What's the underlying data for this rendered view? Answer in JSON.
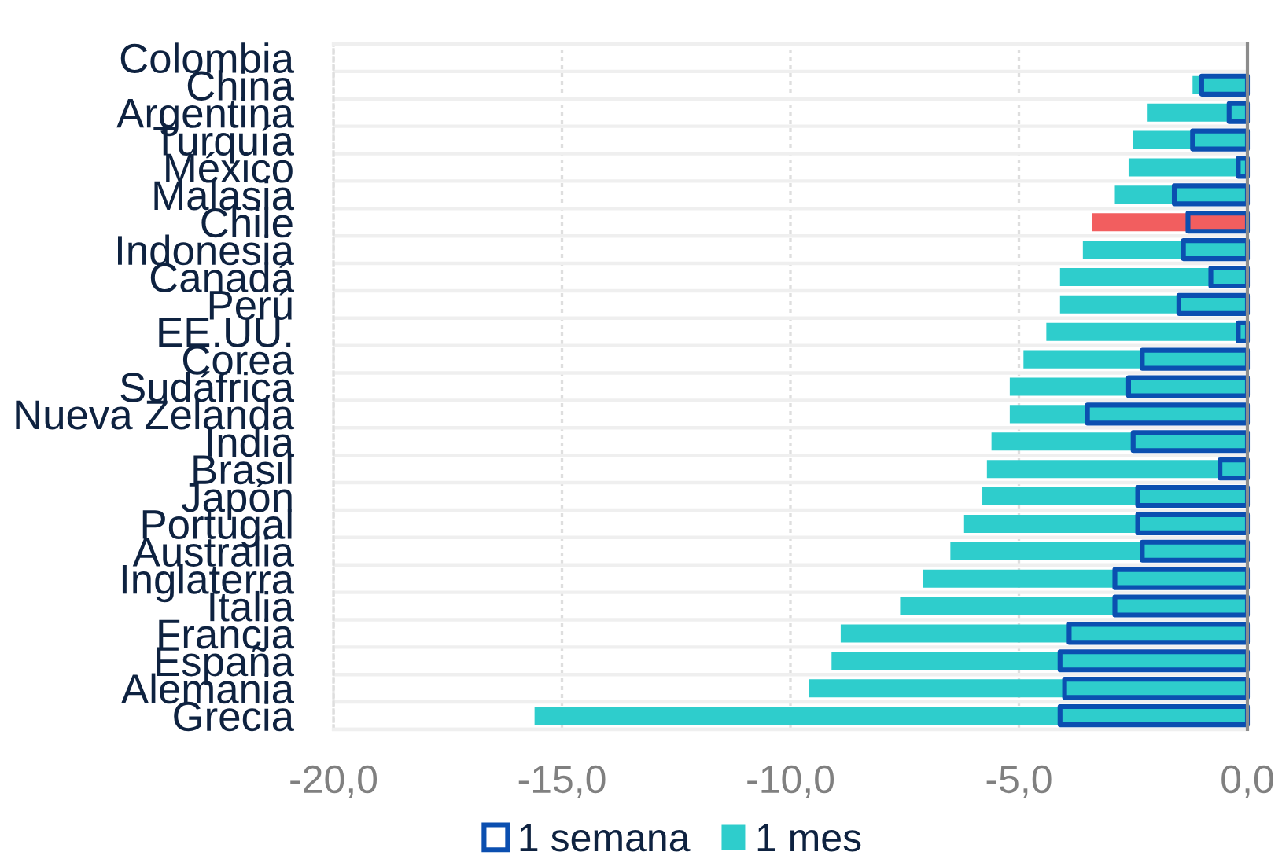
{
  "chart_data": {
    "type": "bar",
    "orientation": "horizontal",
    "categories": [
      "Colombia",
      "China",
      "Argentina",
      "Turquía",
      "México",
      "Malasia",
      "Chile",
      "Indonesia",
      "Canadá",
      "Perú",
      "EE.UU.",
      "Corea",
      "Sudáfrica",
      "Nueva Zelanda",
      "India",
      "Brasil",
      "Japón",
      "Portugal",
      "Australia",
      "Inglaterra",
      "Italia",
      "Francia",
      "España",
      "Alemania",
      "Grecia"
    ],
    "series": [
      {
        "name": "1 semana",
        "color": "#0b4fb0",
        "line_style": "solid",
        "values": [
          null,
          -1.0,
          -0.4,
          -1.2,
          -0.2,
          -1.6,
          -1.3,
          -1.4,
          -0.8,
          -1.5,
          -0.2,
          -2.3,
          -2.6,
          -3.5,
          -2.5,
          -0.6,
          -2.4,
          -2.4,
          -2.3,
          -2.9,
          -2.9,
          -3.9,
          -4.1,
          -4.0,
          -4.1
        ]
      },
      {
        "name": "1 mes",
        "color": "#2ecdcc",
        "colors": [
          "#2ecdcc",
          "#2ecdcc",
          "#2ecdcc",
          "#2ecdcc",
          "#2ecdcc",
          "#2ecdcc",
          "#f25e5f",
          "#2ecdcc",
          "#2ecdcc",
          "#2ecdcc",
          "#2ecdcc",
          "#2ecdcc",
          "#2ecdcc",
          "#2ecdcc",
          "#2ecdcc",
          "#2ecdcc",
          "#2ecdcc",
          "#2ecdcc",
          "#2ecdcc",
          "#2ecdcc",
          "#2ecdcc",
          "#2ecdcc",
          "#2ecdcc",
          "#2ecdcc",
          "#2ecdcc"
        ],
        "values": [
          null,
          -1.2,
          -2.2,
          -2.5,
          -2.6,
          -2.9,
          -3.4,
          -3.6,
          -4.1,
          -4.1,
          -4.4,
          -4.9,
          -5.2,
          -5.2,
          -5.6,
          -5.7,
          -5.8,
          -6.2,
          -6.5,
          -7.1,
          -7.6,
          -8.9,
          -9.1,
          -9.6,
          -15.6
        ]
      }
    ],
    "xlim": [
      -20,
      0
    ],
    "xticks": [
      {
        "value": -20,
        "label": "-20,0"
      },
      {
        "value": -15,
        "label": "-15,0"
      },
      {
        "value": -10,
        "label": "-10,0"
      },
      {
        "value": -5,
        "label": "-5,0"
      },
      {
        "value": 0,
        "label": "0,0"
      }
    ],
    "grid": true,
    "legend": "bottom"
  }
}
